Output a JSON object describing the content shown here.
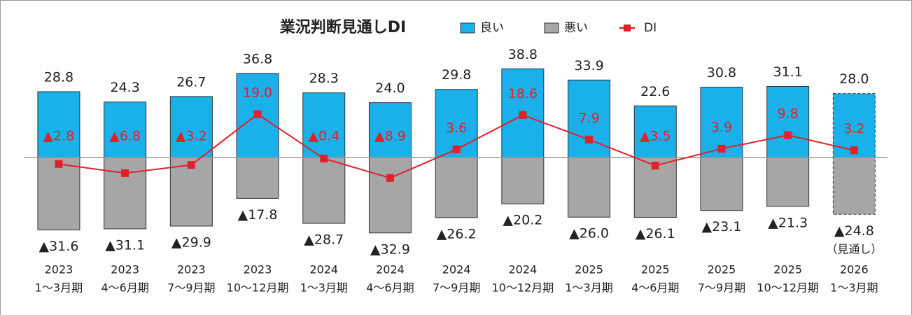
{
  "chart_data": {
    "type": "bar",
    "title": "業況判断見通しDI",
    "categories": [
      [
        "2023",
        "1～3月期"
      ],
      [
        "2023",
        "4～6月期"
      ],
      [
        "2023",
        "7～9月期"
      ],
      [
        "2023",
        "10～12月期"
      ],
      [
        "2024",
        "1～3月期"
      ],
      [
        "2024",
        "4～6月期"
      ],
      [
        "2024",
        "7～9月期"
      ],
      [
        "2024",
        "10～12月期"
      ],
      [
        "2025",
        "1～3月期"
      ],
      [
        "2025",
        "4～6月期"
      ],
      [
        "2025",
        "7～9月期"
      ],
      [
        "2025",
        "10～12月期"
      ],
      [
        "2026",
        "1～3月期"
      ]
    ],
    "series": [
      {
        "name": "良い",
        "color": "#1ab0ea",
        "values": [
          28.8,
          24.3,
          26.7,
          36.8,
          28.3,
          24.0,
          29.8,
          38.8,
          33.9,
          22.6,
          30.8,
          31.1,
          28.0
        ],
        "value_labels": [
          "28.8",
          "24.3",
          "26.7",
          "36.8",
          "28.3",
          "24.0",
          "29.8",
          "38.8",
          "33.9",
          "22.6",
          "30.8",
          "31.1",
          "28.0"
        ]
      },
      {
        "name": "悪い",
        "color": "#a6a6a6",
        "values": [
          -31.6,
          -31.1,
          -29.9,
          -17.8,
          -28.7,
          -32.9,
          -26.2,
          -20.2,
          -26.0,
          -26.1,
          -23.1,
          -21.3,
          -24.8
        ],
        "value_labels": [
          "▲31.6",
          "▲31.1",
          "▲29.9",
          "▲17.8",
          "▲28.7",
          "▲32.9",
          "▲26.2",
          "▲20.2",
          "▲26.0",
          "▲26.1",
          "▲23.1",
          "▲21.3",
          "▲24.8"
        ]
      },
      {
        "name": "DI",
        "type": "line",
        "color": "#e2202a",
        "values": [
          -2.8,
          -6.8,
          -3.2,
          19.0,
          -0.4,
          -8.9,
          3.6,
          18.6,
          7.9,
          -3.5,
          3.9,
          9.8,
          3.2
        ],
        "value_labels": [
          "▲2.8",
          "▲6.8",
          "▲3.2",
          "19.0",
          "▲0.4",
          "▲8.9",
          "3.6",
          "18.6",
          "7.9",
          "▲3.5",
          "3.9",
          "9.8",
          "3.2"
        ]
      }
    ],
    "annotation": "（見通し）",
    "ylim": [
      -40,
      45
    ],
    "legend": "top"
  }
}
